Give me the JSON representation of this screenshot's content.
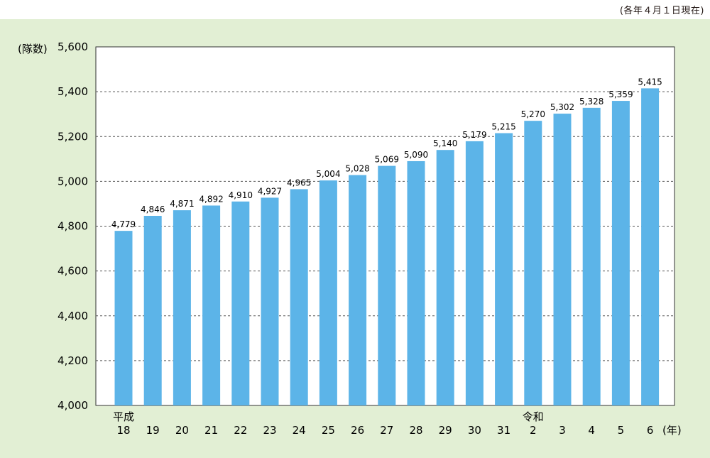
{
  "note": "(各年４月１日現在)",
  "chart_data": {
    "type": "bar",
    "y_unit_label": "(隊数)",
    "x_unit_label": "(年)",
    "categories": [
      "18",
      "19",
      "20",
      "21",
      "22",
      "23",
      "24",
      "25",
      "26",
      "27",
      "28",
      "29",
      "30",
      "31",
      "2",
      "3",
      "4",
      "5",
      "6"
    ],
    "era_labels": [
      {
        "category_index": 0,
        "text": "平成"
      },
      {
        "category_index": 14,
        "text": "令和"
      }
    ],
    "values": [
      4779,
      4846,
      4871,
      4892,
      4910,
      4927,
      4965,
      5004,
      5028,
      5069,
      5090,
      5140,
      5179,
      5215,
      5270,
      5302,
      5328,
      5359,
      5415
    ],
    "value_labels": [
      "4,779",
      "4,846",
      "4,871",
      "4,892",
      "4,910",
      "4,927",
      "4,965",
      "5,004",
      "5,028",
      "5,069",
      "5,090",
      "5,140",
      "5,179",
      "5,215",
      "5,270",
      "5,302",
      "5,328",
      "5,359",
      "5,415"
    ],
    "ylim": [
      4000,
      5600
    ],
    "yticks": [
      4000,
      4200,
      4400,
      4600,
      4800,
      5000,
      5200,
      5400,
      5600
    ],
    "ytick_labels": [
      "4,000",
      "4,200",
      "4,400",
      "4,600",
      "4,800",
      "5,000",
      "5,200",
      "5,400",
      "5,600"
    ],
    "grid": "horizontal-dashed",
    "colors": {
      "bar": "#5cb4e8",
      "background": "#e2efd4",
      "plot_background": "#ffffff",
      "grid": "#555555"
    }
  }
}
